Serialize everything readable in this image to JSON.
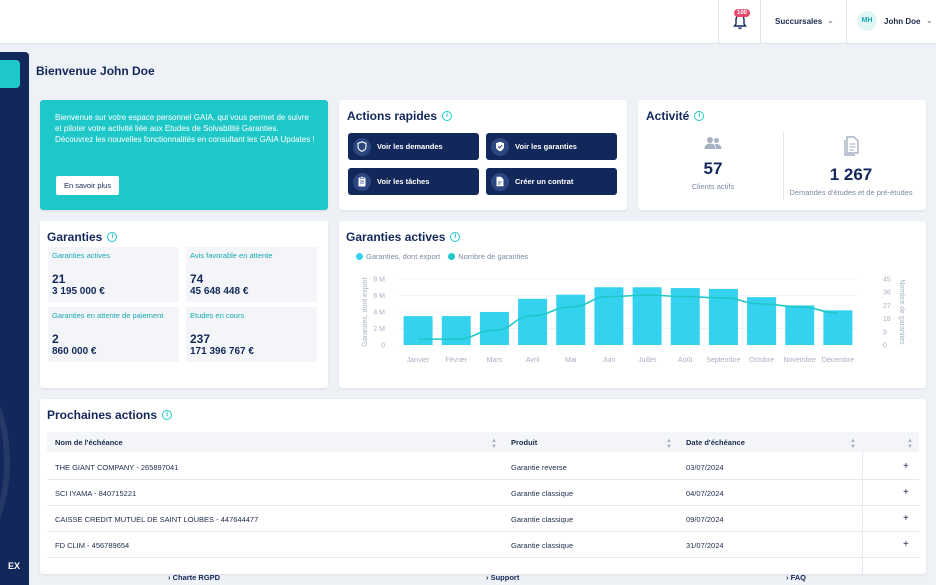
{
  "header": {
    "notification_count": "100",
    "branch_label": "Succursales",
    "user_initials": "MH",
    "user_name": "John Doe"
  },
  "page": {
    "welcome_title": "Bienvenue John Doe"
  },
  "promo": {
    "text": "Bienvenue sur votre espace personnel GAIA, qui vous permet de suivre et piloter votre activité liée aux Etudes de Solvabilité Garanties. Découvrez les nouvelles fonctionnalités en consultant les GAIA Updates !",
    "button": "En savoir plus"
  },
  "quick_actions": {
    "title": "Actions rapides",
    "buttons": [
      {
        "label": "Voir les demandes",
        "icon": "shield-icon"
      },
      {
        "label": "Voir les garanties",
        "icon": "shield-check-icon"
      },
      {
        "label": "Voir les tâches",
        "icon": "clipboard-icon"
      },
      {
        "label": "Créer un contrat",
        "icon": "document-edit-icon"
      }
    ]
  },
  "activity": {
    "title": "Activité",
    "clients_value": "57",
    "clients_label": "Clients actifs",
    "requests_value": "1 267",
    "requests_label": "Demandes d'études et de pré-études"
  },
  "guarantees": {
    "title": "Garanties",
    "cells": [
      {
        "label": "Garanties actives",
        "count": "21",
        "amount": "3 195 000 €"
      },
      {
        "label": "Avis favorable en attente",
        "count": "74",
        "amount": "45 648 448 €"
      },
      {
        "label": "Garanties en attente de paiement",
        "count": "2",
        "amount": "860 000 €"
      },
      {
        "label": "Etudes en cours",
        "count": "237",
        "amount": "171 396 767 €"
      }
    ]
  },
  "active_chart": {
    "title": "Garanties actives",
    "legend_bar": "Garanties, dont export",
    "legend_line": "Nombre de garanties"
  },
  "chart_data": {
    "type": "bar",
    "categories": [
      "Janvier",
      "Février",
      "Mars",
      "Avril",
      "Mai",
      "Juin",
      "Juillet",
      "Août",
      "Septembre",
      "Octobre",
      "Novembre",
      "Décembre"
    ],
    "series": [
      {
        "name": "Garanties, dont export",
        "type": "bar",
        "axis": "left",
        "values": [
          3500000,
          3500000,
          4000000,
          5600000,
          6100000,
          7000000,
          7000000,
          6900000,
          6800000,
          5800000,
          4800000,
          4200000
        ]
      },
      {
        "name": "Nombre de garanties",
        "type": "line",
        "axis": "right",
        "values": [
          4,
          4,
          10,
          20,
          26,
          33,
          34,
          33,
          32,
          28,
          26,
          22
        ]
      }
    ],
    "ylabel": "Garanties, dont export",
    "y2label": "Nombre de garanties",
    "ylim": [
      0,
      8000000
    ],
    "y2lim": [
      0,
      45
    ],
    "yticks": [
      "0",
      "2 M",
      "4 M",
      "6 M",
      "8 M"
    ],
    "y2ticks": [
      "0",
      "9",
      "18",
      "27",
      "36",
      "45"
    ],
    "colors": {
      "bar": "#34d2ef",
      "line": "#1ec8c8"
    },
    "grid": true,
    "legend": "top-left"
  },
  "next_actions": {
    "title": "Prochaines actions",
    "columns": [
      "Nom de l'échéance",
      "Produit",
      "Date d'échéance"
    ],
    "rows": [
      {
        "name": "THE GIANT COMPANY - 265897041",
        "product": "Garantie reverse",
        "date": "03/07/2024"
      },
      {
        "name": "SCI IYAMA - 840715221",
        "product": "Garantie classique",
        "date": "04/07/2024"
      },
      {
        "name": "CAISSE CREDIT MUTUEL DE SAINT LOUBES - 447644477",
        "product": "Garantie classique",
        "date": "09/07/2024"
      },
      {
        "name": "FD CLIM - 456789654",
        "product": "Garantie classique",
        "date": "31/07/2024"
      }
    ],
    "row_action": "+"
  },
  "footer": {
    "links": [
      "Charte RGPD",
      "Support",
      "FAQ"
    ]
  },
  "sidebar": {
    "exit_label": "EX"
  }
}
